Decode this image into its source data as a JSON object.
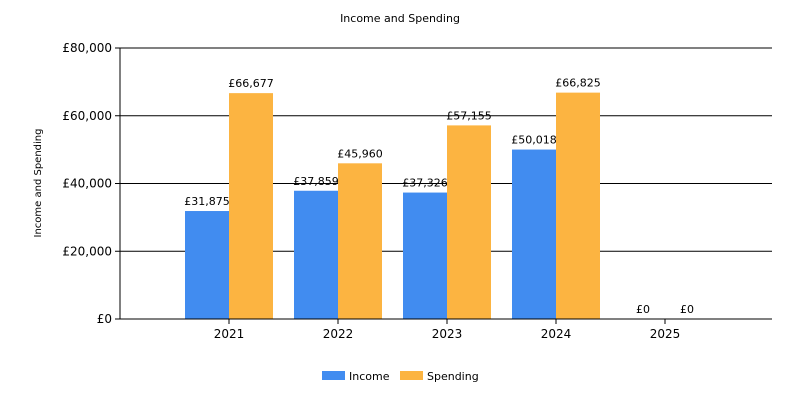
{
  "chart_data": {
    "type": "bar",
    "title": "Income and Spending",
    "xlabel": "",
    "ylabel": "Income and Spending",
    "categories": [
      "2021",
      "2022",
      "2023",
      "2024",
      "2025"
    ],
    "series": [
      {
        "name": "Income",
        "color": "#418CF0",
        "values": [
          31875,
          37859,
          37326,
          50018,
          0
        ],
        "labels": [
          "£31,875",
          "£37,859",
          "£37,326",
          "£50,018",
          "£0"
        ]
      },
      {
        "name": "Spending",
        "color": "#FCB441",
        "values": [
          66677,
          45960,
          57155,
          66825,
          0
        ],
        "labels": [
          "£66,677",
          "£45,960",
          "£57,155",
          "£66,825",
          "£0"
        ]
      }
    ],
    "ylim": [
      0,
      80000
    ],
    "yticks": [
      0,
      20000,
      40000,
      60000,
      80000
    ],
    "ytick_labels": [
      "£0",
      "£20,000",
      "£40,000",
      "£60,000",
      "£80,000"
    ],
    "grid": true,
    "legend_position": "bottom-center"
  }
}
